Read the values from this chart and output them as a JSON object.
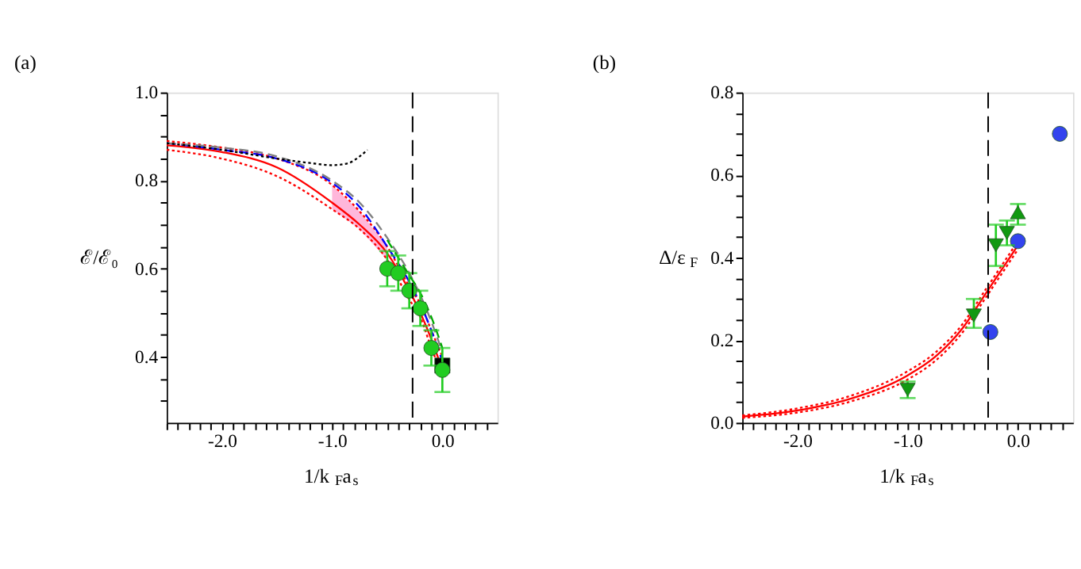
{
  "chart_data": [
    {
      "type": "line",
      "title": "(a)",
      "xlabel": "1/k$_{F}$a$_{s}$",
      "ylabel": "ℰ/ℰ₀",
      "xlim": [
        -2.5,
        0.5
      ],
      "ylim": [
        0.25,
        1.0
      ],
      "xticks": [
        {
          "value": -2.5,
          "label": null
        },
        {
          "value": -2.4,
          "label": null
        },
        {
          "value": -2.3,
          "label": null
        },
        {
          "value": -2.2,
          "label": null
        },
        {
          "value": -2.1,
          "label": null
        },
        {
          "value": -2.0,
          "label": "-2.0"
        },
        {
          "value": -1.9,
          "label": null
        },
        {
          "value": -1.8,
          "label": null
        },
        {
          "value": -1.7,
          "label": null
        },
        {
          "value": -1.6,
          "label": null
        },
        {
          "value": -1.5,
          "label": null
        },
        {
          "value": -1.4,
          "label": null
        },
        {
          "value": -1.3,
          "label": null
        },
        {
          "value": -1.2,
          "label": null
        },
        {
          "value": -1.1,
          "label": null
        },
        {
          "value": -1.0,
          "label": "-1.0"
        },
        {
          "value": -0.9,
          "label": null
        },
        {
          "value": -0.8,
          "label": null
        },
        {
          "value": -0.7,
          "label": null
        },
        {
          "value": -0.6,
          "label": null
        },
        {
          "value": -0.5,
          "label": null
        },
        {
          "value": -0.4,
          "label": null
        },
        {
          "value": -0.3,
          "label": null
        },
        {
          "value": -0.2,
          "label": null
        },
        {
          "value": -0.1,
          "label": null
        },
        {
          "value": 0.0,
          "label": "0.0"
        },
        {
          "value": 0.1,
          "label": null
        },
        {
          "value": 0.2,
          "label": null
        },
        {
          "value": 0.3,
          "label": null
        },
        {
          "value": 0.4,
          "label": null
        }
      ],
      "yticks": [
        {
          "value": 0.3,
          "label": null
        },
        {
          "value": 0.35,
          "label": null
        },
        {
          "value": 0.4,
          "label": "0.4"
        },
        {
          "value": 0.45,
          "label": null
        },
        {
          "value": 0.5,
          "label": null
        },
        {
          "value": 0.55,
          "label": null
        },
        {
          "value": 0.6,
          "label": "0.6"
        },
        {
          "value": 0.65,
          "label": null
        },
        {
          "value": 0.7,
          "label": null
        },
        {
          "value": 0.75,
          "label": null
        },
        {
          "value": 0.8,
          "label": "0.8"
        },
        {
          "value": 0.85,
          "label": null
        },
        {
          "value": 0.9,
          "label": null
        },
        {
          "value": 0.95,
          "label": null
        },
        {
          "value": 1.0,
          "label": "1.0"
        }
      ],
      "grid": false,
      "legend": false,
      "ref_lines": [
        {
          "axis": "x",
          "value": -0.27,
          "color": "#000000",
          "line_style": "dashed"
        }
      ],
      "series": [
        {
          "color": "#ff0000",
          "line_style": "solid",
          "x": [
            -2.5,
            -2.0,
            -1.5,
            -1.0,
            -0.75,
            -0.5,
            -0.3,
            -0.2,
            -0.1,
            0.0
          ],
          "values": [
            0.88,
            0.865,
            0.83,
            0.75,
            0.7,
            0.635,
            0.55,
            0.5,
            0.44,
            0.37
          ],
          "lower": [
            null,
            null,
            null,
            0.735,
            0.69,
            0.62,
            null,
            null,
            null,
            null
          ],
          "upper": [
            null,
            null,
            null,
            0.79,
            0.73,
            0.65,
            null,
            null,
            null,
            null
          ]
        },
        {
          "color": "#ff0000",
          "line_style": "dotted",
          "x": [
            -2.5,
            -2.0,
            -1.5,
            -1.0,
            -0.75,
            -0.5,
            -0.3,
            -0.2,
            -0.1,
            0.0
          ],
          "values": [
            0.89,
            0.875,
            0.85,
            0.79,
            0.73,
            0.65,
            0.56,
            0.52,
            0.46,
            0.4
          ]
        },
        {
          "color": "#ff0000",
          "line_style": "dotted",
          "x": [
            -2.5,
            -2.0,
            -1.5,
            -1.0,
            -0.75,
            -0.5,
            -0.3,
            -0.2,
            -0.1,
            0.0
          ],
          "values": [
            0.87,
            0.85,
            0.81,
            0.735,
            0.69,
            0.62,
            0.53,
            0.49,
            0.42,
            0.36
          ]
        },
        {
          "color": "#0000ff",
          "line_style": "dashed",
          "x": [
            -2.5,
            -2.0,
            -1.5,
            -1.0,
            -0.75,
            -0.5,
            -0.3,
            -0.2,
            -0.1,
            0.0
          ],
          "values": [
            0.885,
            0.87,
            0.85,
            0.795,
            0.74,
            0.65,
            0.57,
            0.52,
            0.46,
            0.39
          ]
        },
        {
          "color": "#808080",
          "line_style": "dashed",
          "x": [
            -2.5,
            -2.0,
            -1.5,
            -1.0,
            -0.75,
            -0.5,
            -0.3,
            -0.2,
            -0.1,
            0.0
          ],
          "values": [
            0.885,
            0.875,
            0.855,
            0.8,
            0.75,
            0.67,
            0.59,
            0.54,
            0.48,
            0.41
          ]
        },
        {
          "color": "#00aa00",
          "line_style": "dashed",
          "x": [
            -0.5,
            -0.3,
            -0.2,
            -0.1,
            0.0
          ],
          "values": [
            0.665,
            0.585,
            0.545,
            0.49,
            0.42
          ]
        },
        {
          "color": "#000000",
          "line_style": "dotted",
          "x": [
            -2.5,
            -2.0,
            -1.5,
            -1.2,
            -1.0,
            -0.85,
            -0.75,
            -0.68
          ],
          "values": [
            0.885,
            0.87,
            0.85,
            0.84,
            0.835,
            0.84,
            0.855,
            0.87
          ]
        },
        {
          "type": "scatter",
          "color": "#000000",
          "marker": "square",
          "x": [
            0.0
          ],
          "values": [
            0.38
          ]
        },
        {
          "type": "scatter",
          "color": "#22cc22",
          "marker": "circle",
          "x": [
            -0.5,
            -0.4,
            -0.3,
            -0.2,
            -0.1,
            0.0
          ],
          "values": [
            0.6,
            0.59,
            0.55,
            0.51,
            0.42,
            0.37
          ],
          "errors": [
            [
              0.56,
              0.64
            ],
            [
              0.55,
              0.63
            ],
            [
              0.51,
              0.59
            ],
            [
              0.47,
              0.55
            ],
            [
              0.38,
              0.46
            ],
            [
              0.32,
              0.42
            ]
          ]
        }
      ]
    },
    {
      "type": "line",
      "title": "(b)",
      "xlabel": "1/k$_{F}$a$_{s}$",
      "ylabel": "Δ/ε$_{F}$",
      "xlim": [
        -2.5,
        0.5
      ],
      "ylim": [
        0.0,
        0.8
      ],
      "xticks": [
        {
          "value": -2.5,
          "label": null
        },
        {
          "value": -2.4,
          "label": null
        },
        {
          "value": -2.3,
          "label": null
        },
        {
          "value": -2.2,
          "label": null
        },
        {
          "value": -2.1,
          "label": null
        },
        {
          "value": -2.0,
          "label": "-2.0"
        },
        {
          "value": -1.9,
          "label": null
        },
        {
          "value": -1.8,
          "label": null
        },
        {
          "value": -1.7,
          "label": null
        },
        {
          "value": -1.6,
          "label": null
        },
        {
          "value": -1.5,
          "label": null
        },
        {
          "value": -1.4,
          "label": null
        },
        {
          "value": -1.3,
          "label": null
        },
        {
          "value": -1.2,
          "label": null
        },
        {
          "value": -1.1,
          "label": null
        },
        {
          "value": -1.0,
          "label": "-1.0"
        },
        {
          "value": -0.9,
          "label": null
        },
        {
          "value": -0.8,
          "label": null
        },
        {
          "value": -0.7,
          "label": null
        },
        {
          "value": -0.6,
          "label": null
        },
        {
          "value": -0.5,
          "label": null
        },
        {
          "value": -0.4,
          "label": null
        },
        {
          "value": -0.3,
          "label": null
        },
        {
          "value": -0.2,
          "label": null
        },
        {
          "value": -0.1,
          "label": null
        },
        {
          "value": 0.0,
          "label": "0.0"
        },
        {
          "value": 0.1,
          "label": null
        },
        {
          "value": 0.2,
          "label": null
        },
        {
          "value": 0.3,
          "label": null
        },
        {
          "value": 0.4,
          "label": null
        }
      ],
      "yticks": [
        {
          "value": 0.0,
          "label": "0.0"
        },
        {
          "value": 0.05,
          "label": null
        },
        {
          "value": 0.1,
          "label": null
        },
        {
          "value": 0.15,
          "label": null
        },
        {
          "value": 0.2,
          "label": "0.2"
        },
        {
          "value": 0.25,
          "label": null
        },
        {
          "value": 0.3,
          "label": null
        },
        {
          "value": 0.35,
          "label": null
        },
        {
          "value": 0.4,
          "label": "0.4"
        },
        {
          "value": 0.45,
          "label": null
        },
        {
          "value": 0.5,
          "label": null
        },
        {
          "value": 0.55,
          "label": null
        },
        {
          "value": 0.6,
          "label": "0.6"
        },
        {
          "value": 0.65,
          "label": null
        },
        {
          "value": 0.7,
          "label": null
        },
        {
          "value": 0.75,
          "label": null
        },
        {
          "value": 0.8,
          "label": "0.8"
        }
      ],
      "grid": false,
      "legend": false,
      "ref_lines": [
        {
          "axis": "x",
          "value": -0.27,
          "color": "#000000",
          "line_style": "dashed"
        }
      ],
      "series": [
        {
          "color": "#ff0000",
          "line_style": "solid",
          "x": [
            -2.5,
            -2.0,
            -1.5,
            -1.0,
            -0.75,
            -0.5,
            -0.3,
            -0.2,
            -0.1,
            0.0
          ],
          "values": [
            0.015,
            0.03,
            0.06,
            0.115,
            0.16,
            0.23,
            0.31,
            0.35,
            0.39,
            0.43
          ]
        },
        {
          "color": "#ff0000",
          "line_style": "dotted",
          "x": [
            -2.5,
            -2.0,
            -1.5,
            -1.0,
            -0.75,
            -0.5,
            -0.3,
            -0.2,
            -0.1,
            0.0
          ],
          "values": [
            0.018,
            0.035,
            0.067,
            0.125,
            0.17,
            0.24,
            0.32,
            0.36,
            0.4,
            0.44
          ]
        },
        {
          "color": "#ff0000",
          "line_style": "dotted",
          "x": [
            -2.5,
            -2.0,
            -1.5,
            -1.0,
            -0.75,
            -0.5,
            -0.3,
            -0.2,
            -0.1,
            0.0
          ],
          "values": [
            0.012,
            0.025,
            0.053,
            0.105,
            0.15,
            0.22,
            0.3,
            0.34,
            0.38,
            0.42
          ]
        },
        {
          "type": "scatter",
          "color": "#3344ee",
          "marker": "circle",
          "x": [
            0.38,
            -0.25,
            0.0
          ],
          "values": [
            0.7,
            0.22,
            0.44
          ]
        },
        {
          "type": "scatter",
          "color": "#119911",
          "marker": "triangle-down",
          "x": [
            -1.0,
            -0.4,
            -0.2,
            -0.1
          ],
          "values": [
            0.08,
            0.26,
            0.43,
            0.46
          ],
          "errors": [
            [
              0.06,
              0.1
            ],
            [
              0.23,
              0.3
            ],
            [
              0.38,
              0.48
            ],
            [
              0.43,
              0.49
            ]
          ]
        },
        {
          "type": "scatter",
          "color": "#119911",
          "marker": "triangle-up",
          "x": [
            0.0
          ],
          "values": [
            0.51
          ],
          "errors": [
            [
              0.48,
              0.53
            ]
          ]
        }
      ]
    }
  ]
}
